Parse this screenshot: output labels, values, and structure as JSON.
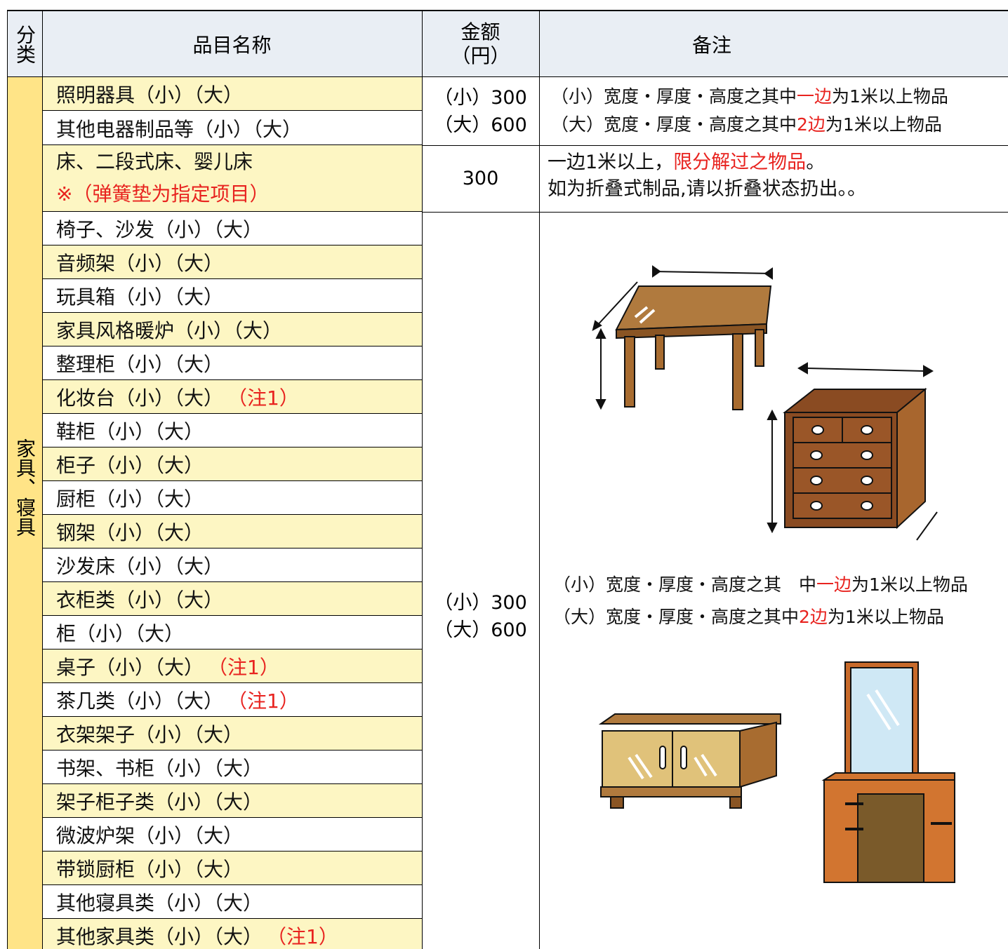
{
  "header": {
    "category": "分类",
    "name": "品目名称",
    "price": [
      "金额",
      "（円）"
    ],
    "note": "备注"
  },
  "category": "家具、寝具",
  "rows": [
    {
      "name": "照明器具（小）（大）"
    },
    {
      "name": "其他电器制品等（小）（大）"
    },
    {
      "name": "床、二段式床、婴儿床",
      "remark": "※（弹簧垫为指定项目）"
    },
    {
      "name": "椅子、沙发（小）（大）"
    },
    {
      "name": "音频架（小）（大）"
    },
    {
      "name": "玩具箱（小）（大）"
    },
    {
      "name": "家具风格暖炉（小）（大）"
    },
    {
      "name": "整理柜（小）（大）"
    },
    {
      "name": "化妆台（小）（大）",
      "remark": "（注1）"
    },
    {
      "name": "鞋柜（小）（大）"
    },
    {
      "name": "柜子（小）（大）"
    },
    {
      "name": "厨柜（小）（大）"
    },
    {
      "name": "钢架（小）（大）"
    },
    {
      "name": "沙发床（小）（大）"
    },
    {
      "name": "衣柜类（小）（大）"
    },
    {
      "name": "柜（小）（大）"
    },
    {
      "name": "桌子（小）（大）",
      "remark": "（注1）"
    },
    {
      "name": "茶几类（小）（大）",
      "remark": "（注1）"
    },
    {
      "name": "衣架架子（小）（大）"
    },
    {
      "name": "书架、书柜（小）（大）"
    },
    {
      "name": "架子柜子类（小）（大）"
    },
    {
      "name": "微波炉架（小）（大）"
    },
    {
      "name": "带锁厨柜（小）（大）"
    },
    {
      "name": "其他寝具类（小）（大）"
    },
    {
      "name": "其他家具类（小）（大）",
      "remark": "（注1）"
    }
  ],
  "price_groups": [
    {
      "lines": [
        "（小）300",
        "（大）600"
      ]
    },
    {
      "lines": [
        "300"
      ]
    },
    {
      "lines": [
        "（小）300",
        "（大）600"
      ]
    }
  ],
  "note_groups": [
    {
      "lines": [
        [
          {
            "text": "（小）宽度・厚度・高度之其中"
          },
          {
            "text": "一边",
            "red": true
          },
          {
            "text": "为1米以上物品"
          }
        ],
        [
          {
            "text": "（大）宽度・厚度・高度之其中"
          },
          {
            "text": "2边",
            "red": true
          },
          {
            "text": "为1米以上物品"
          }
        ]
      ]
    },
    {
      "lines": [
        [
          {
            "text": "一边1米以上，"
          },
          {
            "text": "限分解过之物品",
            "red": true
          },
          {
            "text": "。"
          }
        ],
        [
          {
            "text": "如为折叠式制品,请以折叠状态扔出。。"
          }
        ]
      ]
    },
    {
      "lines": [
        [
          {
            "text": "（小）宽度・厚度・高度之其　中"
          },
          {
            "text": "一边",
            "red": true
          },
          {
            "text": "为1米以上物品"
          }
        ],
        [
          {
            "text": "（大）宽度・厚度・高度之其中"
          },
          {
            "text": "2边",
            "red": true
          },
          {
            "text": "为1米以上物品"
          }
        ]
      ]
    }
  ]
}
